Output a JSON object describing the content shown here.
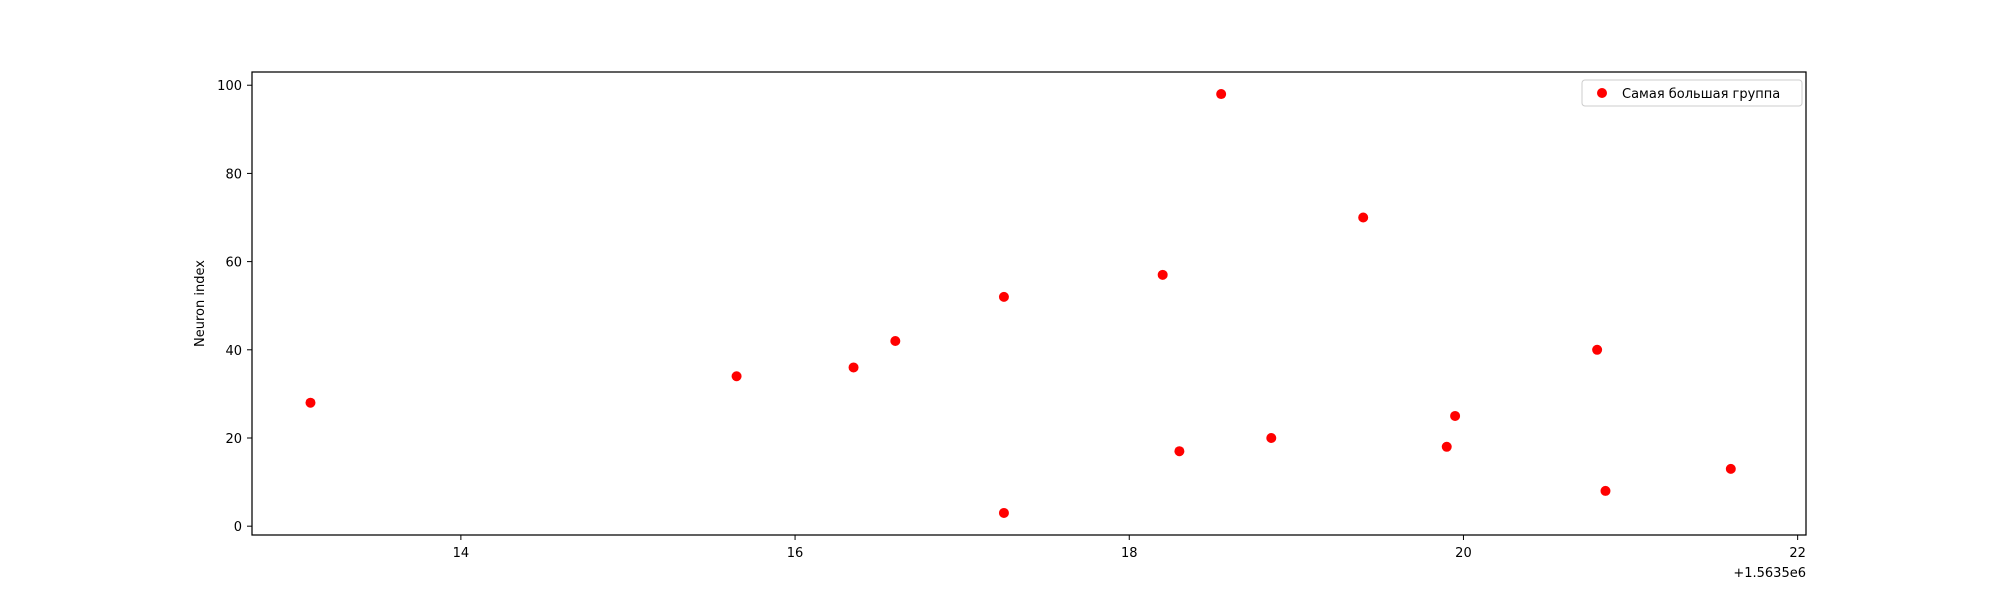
{
  "chart_data": {
    "type": "scatter",
    "title": "",
    "xlabel": "",
    "ylabel": "Neuron index",
    "x_offset_label": "+1.5635e6",
    "x_offset": 1563500,
    "xlim": [
      1563512.75,
      1563522.05
    ],
    "ylim": [
      -2,
      103
    ],
    "xticks": [
      1563514,
      1563516,
      1563518,
      1563520,
      1563522
    ],
    "xtick_labels": [
      "14",
      "16",
      "18",
      "20",
      "22"
    ],
    "yticks": [
      0,
      20,
      40,
      60,
      80,
      100
    ],
    "ytick_labels": [
      "0",
      "20",
      "40",
      "60",
      "80",
      "100"
    ],
    "grid": false,
    "legend_position": "top-right",
    "series": [
      {
        "name": "Самая большая группа",
        "color": "#ff0000",
        "marker": "circle",
        "points": [
          {
            "x": 1563513.1,
            "y": 28
          },
          {
            "x": 1563515.65,
            "y": 34
          },
          {
            "x": 1563516.35,
            "y": 36
          },
          {
            "x": 1563516.6,
            "y": 42
          },
          {
            "x": 1563517.25,
            "y": 52
          },
          {
            "x": 1563517.25,
            "y": 3
          },
          {
            "x": 1563518.2,
            "y": 57
          },
          {
            "x": 1563518.3,
            "y": 17
          },
          {
            "x": 1563518.55,
            "y": 98
          },
          {
            "x": 1563518.85,
            "y": 20
          },
          {
            "x": 1563519.4,
            "y": 70
          },
          {
            "x": 1563519.9,
            "y": 18
          },
          {
            "x": 1563519.95,
            "y": 25
          },
          {
            "x": 1563520.8,
            "y": 40
          },
          {
            "x": 1563520.85,
            "y": 8
          },
          {
            "x": 1563521.6,
            "y": 13
          }
        ]
      }
    ]
  }
}
